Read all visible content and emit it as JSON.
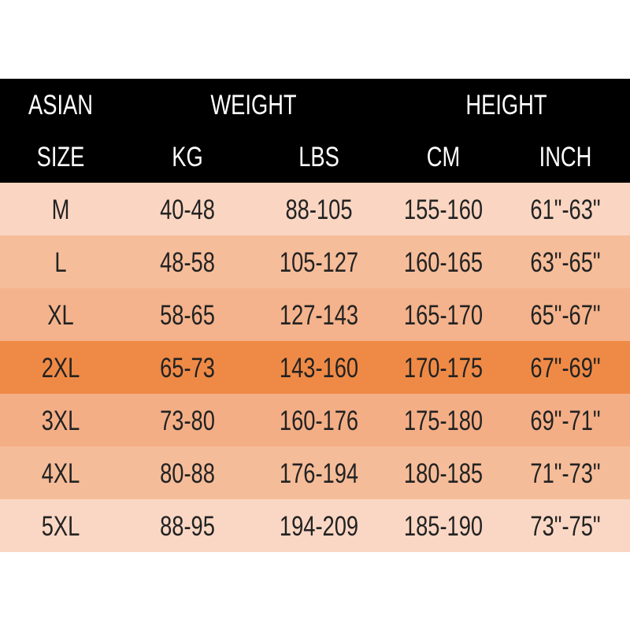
{
  "header": {
    "rows": [
      [
        "ASIAN",
        "WEIGHT",
        "HEIGHT"
      ],
      [
        "SIZE",
        "KG",
        "LBS",
        "CM",
        "INCH"
      ]
    ]
  },
  "table": {
    "rows": [
      [
        "M",
        "40-48",
        "88-105",
        "155-160",
        "61\"-63\""
      ],
      [
        "L",
        "48-58",
        "105-127",
        "160-165",
        "63\"-65\""
      ],
      [
        "XL",
        "58-65",
        "127-143",
        "165-170",
        "65\"-67\""
      ],
      [
        "2XL",
        "65-73",
        "143-160",
        "170-175",
        "67\"-69\""
      ],
      [
        "3XL",
        "73-80",
        "160-176",
        "175-180",
        "69\"-71\""
      ],
      [
        "4XL",
        "80-88",
        "176-194",
        "180-185",
        "71\"-73\""
      ],
      [
        "5XL",
        "88-95",
        "194-209",
        "185-190",
        "73\"-75\""
      ]
    ]
  }
}
